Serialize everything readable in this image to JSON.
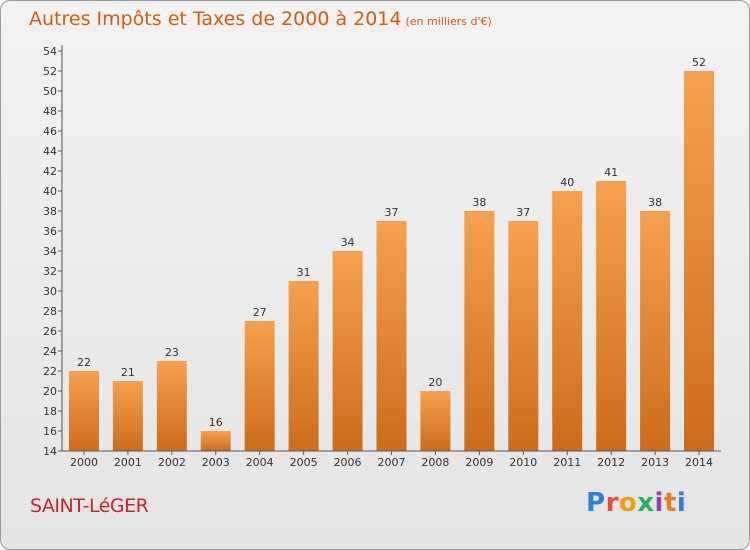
{
  "title": "Autres Impôts et Taxes de 2000 à 2014",
  "unit": "(en milliers d'€)",
  "town": "SAINT-LéGER",
  "logo": {
    "text": "Proxiti",
    "letters": [
      {
        "char": "P",
        "color": "#2f7ed8"
      },
      {
        "char": "r",
        "color": "#e74c3c"
      },
      {
        "char": "o",
        "color": "#f39c12"
      },
      {
        "char": "x",
        "color": "#27ae60"
      },
      {
        "char": "i",
        "color": "#8e44ad"
      },
      {
        "char": "t",
        "color": "#e67e22"
      },
      {
        "char": "i",
        "color": "#2f7ed8"
      }
    ]
  },
  "colors": {
    "bar_light": "#f5a14f",
    "bar_dark": "#cc6c1b",
    "title": "#d35c12",
    "town": "#c8252a",
    "label": "#333333"
  },
  "chart_data": {
    "type": "bar",
    "title": "Autres Impôts et Taxes de 2000 à 2014",
    "subtitle": "(en milliers d'€)",
    "categories": [
      "2000",
      "2001",
      "2002",
      "2003",
      "2004",
      "2005",
      "2006",
      "2007",
      "2008",
      "2009",
      "2010",
      "2011",
      "2012",
      "2013",
      "2014"
    ],
    "values": [
      22,
      21,
      23,
      16,
      27,
      31,
      34,
      37,
      20,
      38,
      37,
      40,
      41,
      38,
      52
    ],
    "ylim": [
      14,
      54
    ],
    "yticks": [
      14,
      16,
      18,
      20,
      22,
      24,
      26,
      28,
      30,
      32,
      34,
      36,
      38,
      40,
      42,
      44,
      46,
      48,
      50,
      52,
      54
    ],
    "grid": false,
    "data_labels": true
  }
}
